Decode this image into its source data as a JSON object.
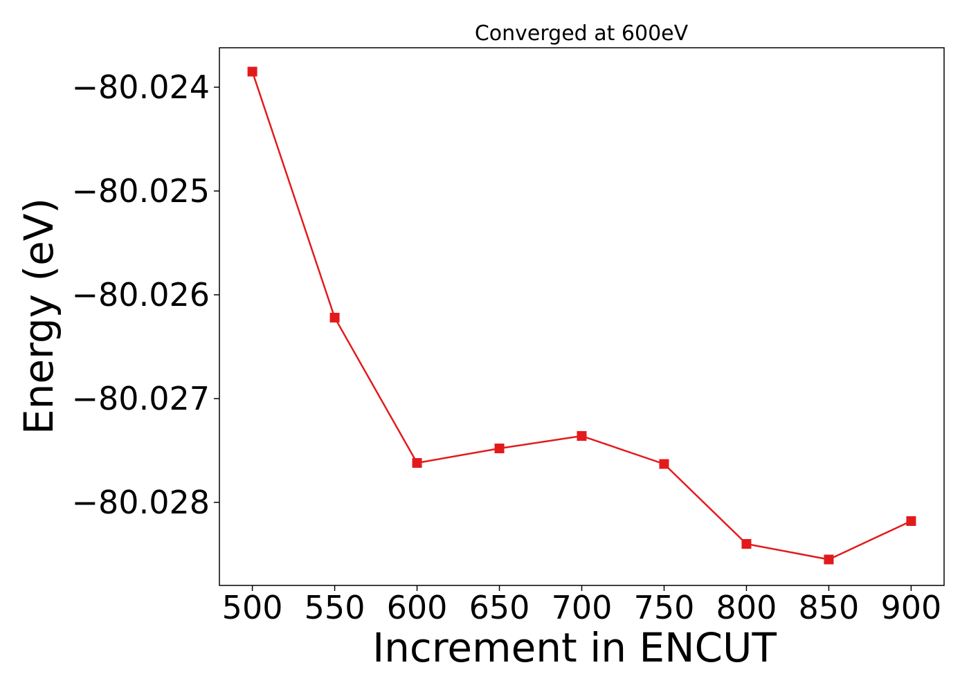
{
  "chart_data": {
    "type": "line",
    "title": "Converged at 600eV",
    "xlabel": "Increment in ENCUT",
    "ylabel": "Energy (eV)",
    "x": [
      500,
      550,
      600,
      650,
      700,
      750,
      800,
      850,
      900
    ],
    "series": [
      {
        "values": [
          -80.02385,
          -80.02622,
          -80.02762,
          -80.02748,
          -80.02736,
          -80.02763,
          -80.0284,
          -80.02855,
          -80.02818
        ],
        "color": "#e31a1c",
        "marker": "square"
      }
    ],
    "xlim": [
      480,
      920
    ],
    "ylim": [
      -80.0288,
      -80.02362
    ],
    "xticks": [
      500,
      550,
      600,
      650,
      700,
      750,
      800,
      850,
      900
    ],
    "xtick_labels": [
      "500",
      "550",
      "600",
      "650",
      "700",
      "750",
      "800",
      "850",
      "900"
    ],
    "yticks": [
      -80.024,
      -80.025,
      -80.026,
      -80.027,
      -80.028
    ],
    "ytick_labels": [
      "−80.024",
      "−80.025",
      "−80.026",
      "−80.027",
      "−80.028"
    ],
    "grid": false,
    "legend": "none"
  }
}
